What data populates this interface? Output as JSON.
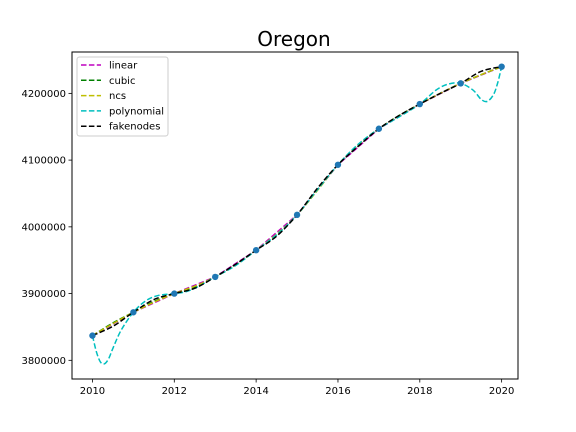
{
  "chart_data": {
    "type": "line",
    "title": "Oregon",
    "xlabel": "",
    "ylabel": "",
    "xlim": [
      2009.5,
      2020.4
    ],
    "ylim": [
      3772000,
      4262000
    ],
    "grid": false,
    "legend_position": "top-left",
    "xticks": [
      2010,
      2012,
      2014,
      2016,
      2018,
      2020
    ],
    "xtick_labels": [
      "2010",
      "2012",
      "2014",
      "2016",
      "2018",
      "2020"
    ],
    "yticks": [
      3800000,
      3900000,
      4000000,
      4100000,
      4200000
    ],
    "ytick_labels": [
      "3800000",
      "3900000",
      "4000000",
      "4100000",
      "4200000"
    ],
    "data_points": {
      "x": [
        2010,
        2011,
        2012,
        2013,
        2014,
        2015,
        2016,
        2017,
        2018,
        2019,
        2020
      ],
      "y": [
        3837000,
        3872000,
        3900000,
        3925000,
        3965000,
        4018000,
        4093000,
        4147000,
        4184000,
        4215000,
        4240000
      ],
      "color": "#1f77b4"
    },
    "series": [
      {
        "name": "linear",
        "color": "#bf00bf",
        "x": [
          2010,
          2011,
          2012,
          2013,
          2014,
          2015,
          2016,
          2017,
          2018,
          2019,
          2020
        ],
        "y": [
          3837000,
          3872000,
          3900000,
          3925000,
          3965000,
          4018000,
          4093000,
          4147000,
          4184000,
          4215000,
          4240000
        ]
      },
      {
        "name": "cubic",
        "color": "#008000",
        "x": [
          2010,
          2010.5,
          2011,
          2011.5,
          2012,
          2012.5,
          2013,
          2013.5,
          2014,
          2014.5,
          2015,
          2015.5,
          2016,
          2016.5,
          2017,
          2017.5,
          2018,
          2018.5,
          2019,
          2019.5,
          2020
        ],
        "y": [
          3837000,
          3856000,
          3872000,
          3888000,
          3900000,
          3910000,
          3925000,
          3943000,
          3965000,
          3988000,
          4018000,
          4055000,
          4093000,
          4123000,
          4147000,
          4167000,
          4184000,
          4200000,
          4215000,
          4228000,
          4240000
        ]
      },
      {
        "name": "ncs",
        "color": "#bfbf00",
        "x": [
          2010,
          2010.5,
          2011,
          2011.5,
          2012,
          2012.5,
          2013,
          2013.5,
          2014,
          2014.5,
          2015,
          2015.5,
          2016,
          2016.5,
          2017,
          2017.5,
          2018,
          2018.5,
          2019,
          2019.5,
          2020
        ],
        "y": [
          3837000,
          3855000,
          3872000,
          3887000,
          3900000,
          3911000,
          3925000,
          3943000,
          3965000,
          3989000,
          4018000,
          4055000,
          4093000,
          4123000,
          4147000,
          4166000,
          4184000,
          4200000,
          4215000,
          4228000,
          4240000
        ]
      },
      {
        "name": "polynomial",
        "color": "#00bfbf",
        "x": [
          2010,
          2010.1,
          2010.2,
          2010.3,
          2010.4,
          2010.5,
          2010.7,
          2011,
          2011.3,
          2011.6,
          2012,
          2012.3,
          2012.6,
          2013,
          2013.5,
          2014,
          2014.5,
          2015,
          2015.5,
          2016,
          2016.5,
          2017,
          2017.5,
          2018,
          2018.4,
          2018.7,
          2019,
          2019.3,
          2019.5,
          2019.65,
          2019.8,
          2019.9,
          2020
        ],
        "y": [
          3837000,
          3812000,
          3797000,
          3795000,
          3803000,
          3818000,
          3845000,
          3872000,
          3889000,
          3897000,
          3900000,
          3903000,
          3911000,
          3925000,
          3942000,
          3965000,
          3988000,
          4018000,
          4056000,
          4093000,
          4124000,
          4147000,
          4165000,
          4184000,
          4205000,
          4214000,
          4215000,
          4205000,
          4191000,
          4188000,
          4198000,
          4215000,
          4240000
        ]
      },
      {
        "name": "fakenodes",
        "color": "#000000",
        "x": [
          2010,
          2010.5,
          2011,
          2011.5,
          2012,
          2012.5,
          2013,
          2013.5,
          2014,
          2014.5,
          2015,
          2015.5,
          2016,
          2016.5,
          2017,
          2017.5,
          2018,
          2018.5,
          2019,
          2019.5,
          2020
        ],
        "y": [
          3837000,
          3851000,
          3872000,
          3891000,
          3900000,
          3908000,
          3925000,
          3944000,
          3965000,
          3986000,
          4018000,
          4058000,
          4093000,
          4121000,
          4147000,
          4167000,
          4184000,
          4200000,
          4215000,
          4233000,
          4240000
        ]
      }
    ]
  }
}
